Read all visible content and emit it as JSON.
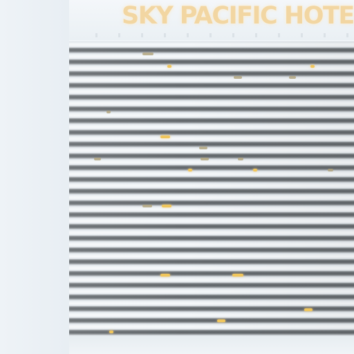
{
  "sign": {
    "text": "SKY PACIFIC HOTEL",
    "color": "#f2d6a2"
  },
  "colors": {
    "sky": "#eef3f7",
    "window_band": "#5f6468",
    "slab": "#f7f9fb",
    "lit_window": "#f0c65c"
  }
}
